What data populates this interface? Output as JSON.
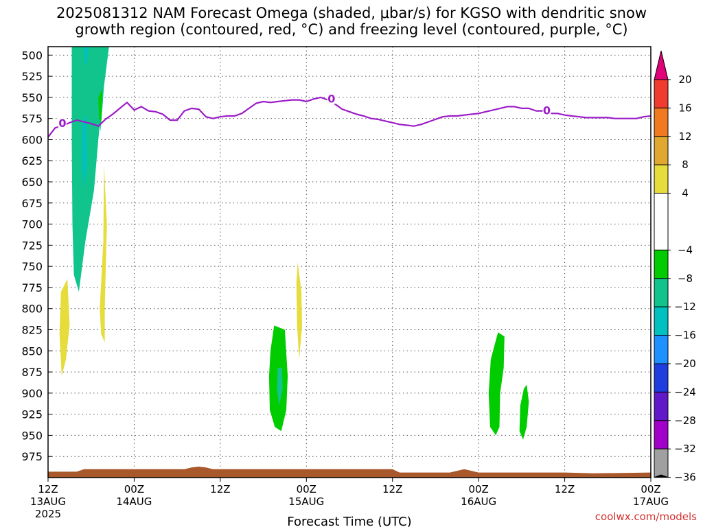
{
  "title": {
    "line1": "2025081312 NAM Forecast Omega (shaded, μbar/s) for KGSO with dendritic snow",
    "line2": "growth region (contoured, red, °C) and freezing level (contoured, purple, °C)"
  },
  "credit": "coolwx.com/models",
  "chart_data": {
    "type": "heatmap",
    "title": "2025081312 NAM Forecast Omega (shaded, μbar/s) for KGSO with dendritic snow growth region (contoured, red, °C) and freezing level (contoured, purple, °C)",
    "xlabel": "Forecast Time (UTC)",
    "x_unit": "hours since 2025081312",
    "xlim": [
      0,
      84
    ],
    "x_ticks": [
      {
        "hour": 0,
        "line1": "12Z",
        "line2": "13AUG",
        "line3": "2025"
      },
      {
        "hour": 12,
        "line1": "00Z",
        "line2": "14AUG",
        "line3": ""
      },
      {
        "hour": 24,
        "line1": "12Z",
        "line2": "",
        "line3": ""
      },
      {
        "hour": 36,
        "line1": "00Z",
        "line2": "15AUG",
        "line3": ""
      },
      {
        "hour": 48,
        "line1": "12Z",
        "line2": "",
        "line3": ""
      },
      {
        "hour": 60,
        "line1": "00Z",
        "line2": "16AUG",
        "line3": ""
      },
      {
        "hour": 72,
        "line1": "12Z",
        "line2": "",
        "line3": ""
      },
      {
        "hour": 84,
        "line1": "00Z",
        "line2": "17AUG",
        "line3": ""
      }
    ],
    "ylabel": "",
    "y_unit": "hPa",
    "ylim": [
      1000,
      490
    ],
    "y_ticks": [
      500,
      525,
      550,
      575,
      600,
      625,
      650,
      675,
      700,
      725,
      750,
      775,
      800,
      825,
      850,
      875,
      900,
      925,
      950,
      975
    ],
    "grid": true,
    "colorbar": {
      "position": "right",
      "levels": [
        20,
        16,
        12,
        8,
        4,
        -4,
        -8,
        -12,
        -16,
        -20,
        -24,
        -28,
        -32,
        -36
      ],
      "bands": [
        {
          "range": [
            20,
            24
          ],
          "color": "#e0007a"
        },
        {
          "range": [
            16,
            20
          ],
          "color": "#f03c30"
        },
        {
          "range": [
            12,
            16
          ],
          "color": "#f07a20"
        },
        {
          "range": [
            8,
            12
          ],
          "color": "#e0a830"
        },
        {
          "range": [
            4,
            8
          ],
          "color": "#e6dc3c"
        },
        {
          "range": [
            -4,
            4
          ],
          "color": "#ffffff"
        },
        {
          "range": [
            -8,
            -4
          ],
          "color": "#00cc00"
        },
        {
          "range": [
            -12,
            -8
          ],
          "color": "#10c48c"
        },
        {
          "range": [
            -16,
            -12
          ],
          "color": "#00c0c0"
        },
        {
          "range": [
            -20,
            -16
          ],
          "color": "#1e90ff"
        },
        {
          "range": [
            -24,
            -20
          ],
          "color": "#1f3ee0"
        },
        {
          "range": [
            -28,
            -24
          ],
          "color": "#6018c8"
        },
        {
          "range": [
            -32,
            -28
          ],
          "color": "#a000c8"
        },
        {
          "range": [
            -36,
            -32
          ],
          "color": "#a0a0a0"
        },
        {
          "range": [
            -40,
            -36
          ],
          "color": "#000000"
        }
      ]
    },
    "shaded_regions": [
      {
        "value_band": "-12 to -8",
        "color": "#10c48c",
        "points": [
          [
            3.3,
            490
          ],
          [
            8.5,
            490
          ],
          [
            7.6,
            550
          ],
          [
            7.0,
            600
          ],
          [
            6.4,
            660
          ],
          [
            5.2,
            720
          ],
          [
            4.3,
            780
          ],
          [
            3.6,
            760
          ],
          [
            3.4,
            700
          ],
          [
            3.3,
            600
          ]
        ]
      },
      {
        "value_band": "-12 to -8",
        "color": "#10c48c",
        "points": [
          [
            6.8,
            525
          ],
          [
            8.0,
            510
          ],
          [
            7.6,
            560
          ],
          [
            7.3,
            590
          ],
          [
            6.9,
            560
          ]
        ]
      },
      {
        "value_band": "-16 to -12",
        "color": "#00c0c0",
        "points": [
          [
            5.0,
            490
          ],
          [
            5.6,
            490
          ],
          [
            5.4,
            510
          ],
          [
            5.1,
            510
          ]
        ]
      },
      {
        "value_band": "-16 to -12",
        "color": "#00c0c0",
        "points": [
          [
            4.8,
            580
          ],
          [
            5.3,
            570
          ],
          [
            5.4,
            630
          ],
          [
            5.0,
            660
          ],
          [
            4.7,
            620
          ]
        ]
      },
      {
        "value_band": "-8 to -4",
        "color": "#00cc00",
        "points": [
          [
            7.0,
            550
          ],
          [
            7.6,
            540
          ],
          [
            7.4,
            580
          ],
          [
            7.1,
            575
          ]
        ]
      },
      {
        "value_band": "4 to 8",
        "color": "#e6dc3c",
        "points": [
          [
            1.8,
            780
          ],
          [
            2.7,
            765
          ],
          [
            3.0,
            820
          ],
          [
            2.5,
            860
          ],
          [
            1.9,
            880
          ],
          [
            1.6,
            830
          ]
        ]
      },
      {
        "value_band": "4 to 8",
        "color": "#e6dc3c",
        "points": [
          [
            7.8,
            630
          ],
          [
            8.2,
            700
          ],
          [
            7.9,
            800
          ],
          [
            7.9,
            840
          ],
          [
            7.4,
            830
          ],
          [
            7.2,
            800
          ],
          [
            7.7,
            720
          ]
        ]
      },
      {
        "value_band": "4 to 8",
        "color": "#e6dc3c",
        "points": [
          [
            34.8,
            745
          ],
          [
            35.3,
            780
          ],
          [
            35.4,
            820
          ],
          [
            35.0,
            860
          ],
          [
            34.7,
            820
          ],
          [
            34.6,
            770
          ]
        ]
      },
      {
        "value_band": "-8 to -4",
        "color": "#00cc00",
        "points": [
          [
            31.5,
            820
          ],
          [
            33.0,
            825
          ],
          [
            33.4,
            880
          ],
          [
            33.2,
            920
          ],
          [
            32.5,
            945
          ],
          [
            31.6,
            940
          ],
          [
            30.9,
            920
          ],
          [
            30.8,
            880
          ],
          [
            31.0,
            850
          ]
        ]
      },
      {
        "value_band": "-12 to -8",
        "color": "#10c48c",
        "points": [
          [
            32.0,
            870
          ],
          [
            32.6,
            870
          ],
          [
            32.7,
            895
          ],
          [
            32.2,
            915
          ],
          [
            31.9,
            895
          ]
        ]
      },
      {
        "value_band": "-8 to -4",
        "color": "#00cc00",
        "points": [
          [
            62.7,
            828
          ],
          [
            63.6,
            833
          ],
          [
            63.5,
            870
          ],
          [
            63.0,
            900
          ],
          [
            62.9,
            940
          ],
          [
            62.4,
            950
          ],
          [
            61.6,
            940
          ],
          [
            61.4,
            900
          ],
          [
            61.7,
            860
          ]
        ]
      },
      {
        "value_band": "-8 to -4",
        "color": "#00cc00",
        "points": [
          [
            66.7,
            890
          ],
          [
            67.0,
            910
          ],
          [
            66.7,
            940
          ],
          [
            66.2,
            955
          ],
          [
            65.7,
            945
          ],
          [
            65.8,
            915
          ],
          [
            66.3,
            895
          ]
        ]
      }
    ],
    "series": [
      {
        "name": "",
        "contour_label": "0",
        "color": "#9b1cc8",
        "x": [
          0,
          1,
          2,
          3,
          4,
          5,
          6,
          7,
          8,
          9,
          10,
          11,
          12,
          13,
          14,
          15,
          16,
          17,
          18,
          19,
          20,
          21,
          22,
          23,
          24,
          25,
          26,
          27,
          28,
          29,
          30,
          31,
          32,
          33,
          34,
          35,
          36,
          37,
          38,
          39,
          40,
          41,
          42,
          43,
          44,
          45,
          46,
          47,
          48,
          49,
          50,
          51,
          52,
          53,
          54,
          55,
          56,
          57,
          58,
          59,
          60,
          61,
          62,
          63,
          64,
          65,
          66,
          67,
          68,
          69,
          70,
          71,
          72,
          73,
          74,
          75,
          76,
          77,
          78,
          79,
          80,
          81,
          82,
          83,
          84
        ],
        "y": [
          597,
          586,
          584,
          580,
          577,
          579,
          581,
          584,
          576,
          570,
          563,
          556,
          565,
          561,
          566,
          567,
          570,
          577,
          577,
          566,
          563,
          564,
          573,
          575,
          573,
          572,
          572,
          569,
          563,
          557,
          555,
          556,
          555,
          554,
          553,
          553,
          555,
          552,
          550,
          553,
          558,
          564,
          567,
          570,
          572,
          575,
          576,
          578,
          580,
          582,
          583,
          584,
          582,
          579,
          576,
          573,
          572,
          572,
          571,
          570,
          569,
          567,
          565,
          563,
          561,
          561,
          563,
          563,
          566,
          566,
          569,
          569,
          571,
          572,
          573,
          574,
          574,
          574,
          574,
          575,
          575,
          575,
          575,
          573,
          572
        ]
      }
    ],
    "contour_labels": [
      {
        "text": "0",
        "x": 2.0,
        "y": 581
      },
      {
        "text": "0",
        "x": 39.5,
        "y": 552
      },
      {
        "text": "0",
        "x": 69.5,
        "y": 566
      }
    ],
    "terrain": {
      "color": "#a8582a",
      "x": [
        0,
        4,
        5,
        19,
        20,
        21,
        22,
        23,
        48,
        49,
        56,
        57,
        58,
        59,
        60,
        72,
        76,
        84
      ],
      "y": [
        993,
        993,
        990,
        990,
        988,
        987,
        988,
        990,
        990,
        994,
        994,
        992,
        990,
        992,
        994,
        994,
        995,
        994
      ]
    }
  }
}
